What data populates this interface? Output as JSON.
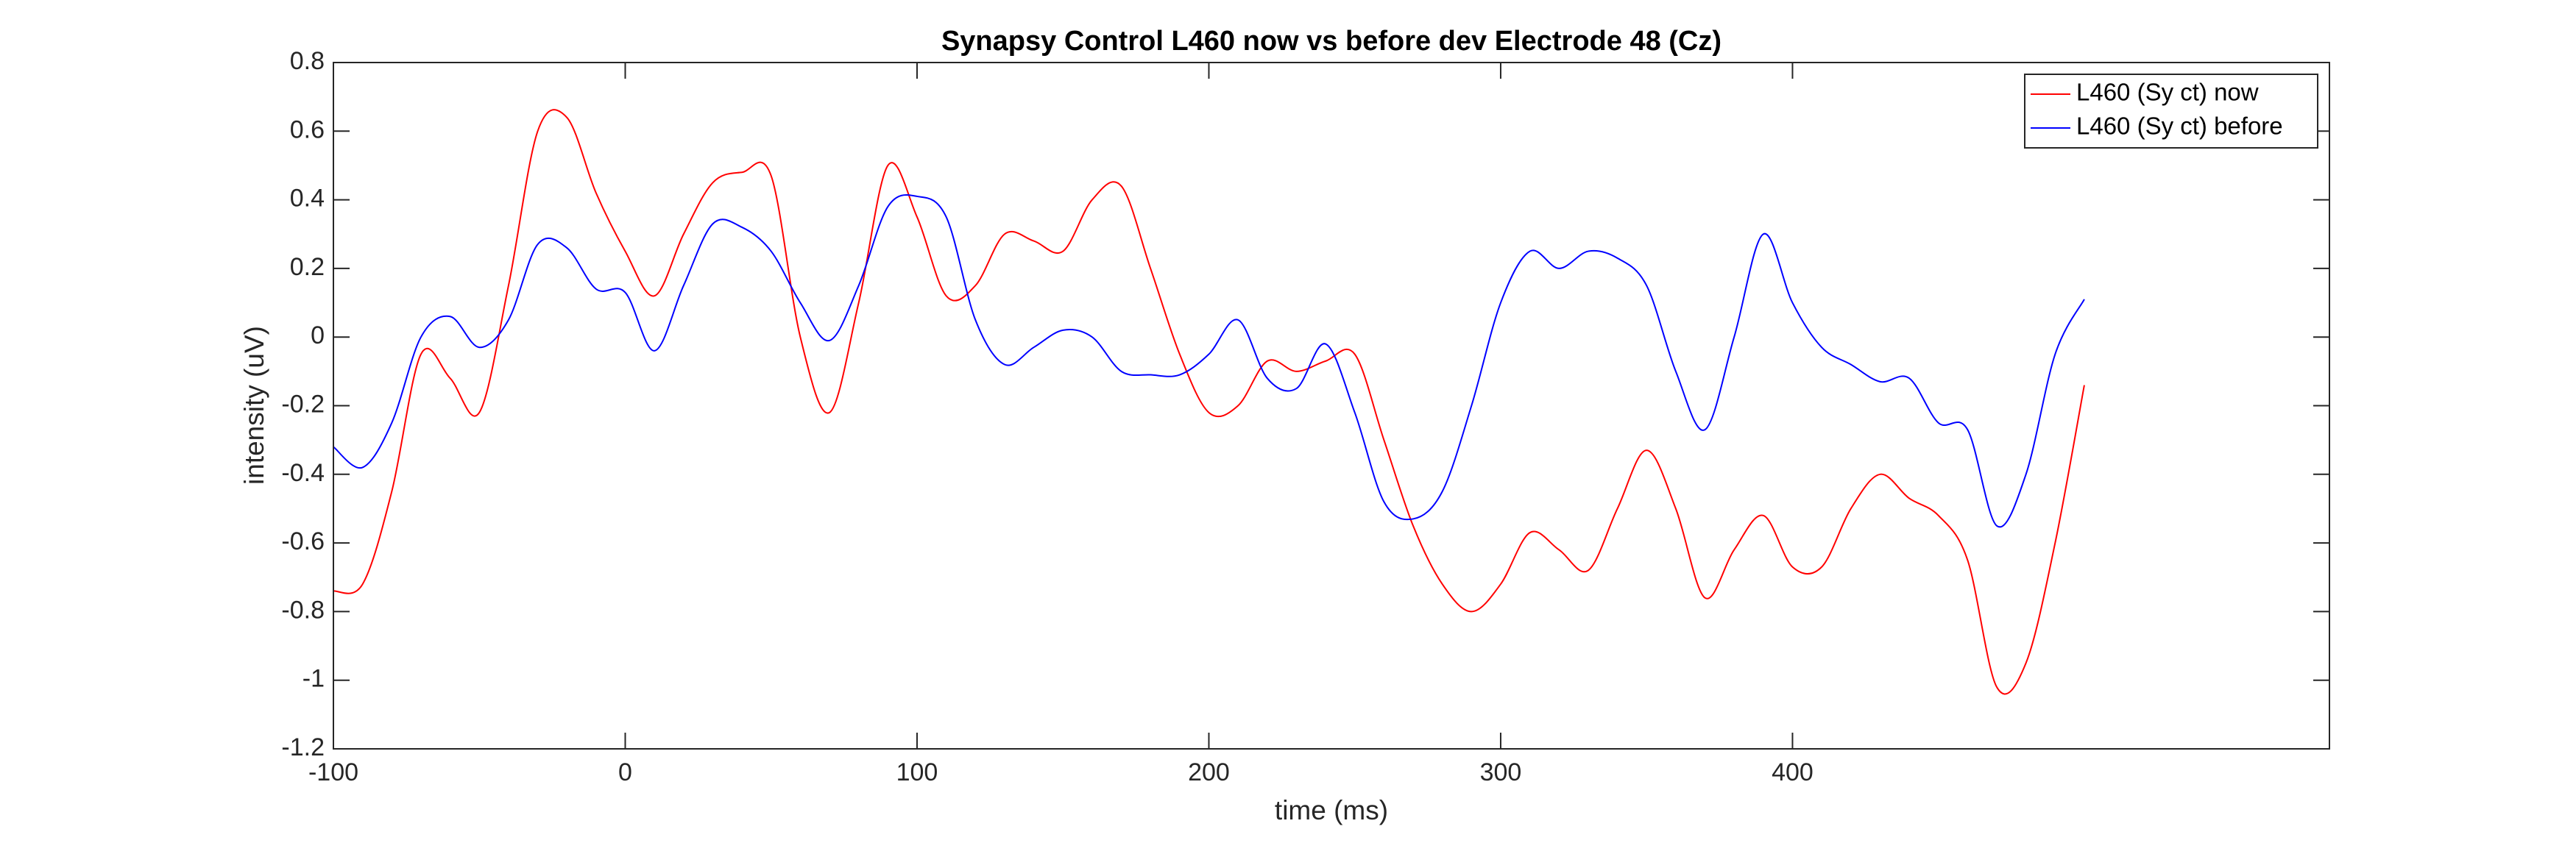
{
  "chart_data": {
    "type": "line",
    "title": "Synapsy Control L460 now vs before dev Electrode 48 (Cz)",
    "x_label": "time (ms)",
    "y_label": "intensity (uV)",
    "x": [
      -100,
      -90,
      -80,
      -70,
      -60,
      -50,
      -40,
      -30,
      -20,
      -10,
      0,
      10,
      20,
      30,
      40,
      50,
      60,
      70,
      80,
      90,
      100,
      110,
      120,
      130,
      140,
      150,
      160,
      170,
      180,
      190,
      200,
      210,
      220,
      230,
      240,
      250,
      260,
      270,
      280,
      290,
      300,
      310,
      320,
      330,
      340,
      350,
      360,
      370,
      380,
      390,
      400,
      410,
      420,
      430,
      440,
      450,
      460,
      470,
      480,
      490,
      500
    ],
    "series": [
      {
        "name": "L460 (Sy ct) now",
        "color": "#ff0000",
        "values": [
          -0.74,
          -0.72,
          -0.45,
          -0.05,
          -0.12,
          -0.22,
          0.15,
          0.6,
          0.64,
          0.42,
          0.25,
          0.12,
          0.3,
          0.45,
          0.48,
          0.47,
          0.0,
          -0.22,
          0.1,
          0.5,
          0.35,
          0.12,
          0.15,
          0.3,
          0.28,
          0.25,
          0.4,
          0.44,
          0.2,
          -0.05,
          -0.22,
          -0.2,
          -0.07,
          -0.1,
          -0.07,
          -0.05,
          -0.3,
          -0.55,
          -0.72,
          -0.8,
          -0.72,
          -0.57,
          -0.62,
          -0.68,
          -0.5,
          -0.33,
          -0.5,
          -0.76,
          -0.62,
          -0.52,
          -0.67,
          -0.67,
          -0.5,
          -0.4,
          -0.47,
          -0.52,
          -0.65,
          -1.02,
          -0.95,
          -0.6,
          -0.14
        ]
      },
      {
        "name": "L460 (Sy ct) before",
        "color": "#0000ff",
        "values": [
          -0.32,
          -0.38,
          -0.25,
          0.0,
          0.06,
          -0.03,
          0.05,
          0.27,
          0.26,
          0.14,
          0.13,
          -0.04,
          0.15,
          0.33,
          0.32,
          0.25,
          0.1,
          -0.01,
          0.15,
          0.38,
          0.41,
          0.35,
          0.05,
          -0.08,
          -0.03,
          0.02,
          0.0,
          -0.1,
          -0.11,
          -0.11,
          -0.05,
          0.05,
          -0.12,
          -0.15,
          -0.02,
          -0.22,
          -0.48,
          -0.53,
          -0.45,
          -0.2,
          0.1,
          0.25,
          0.2,
          0.25,
          0.23,
          0.15,
          -0.1,
          -0.27,
          0.0,
          0.3,
          0.1,
          -0.03,
          -0.08,
          -0.13,
          -0.12,
          -0.25,
          -0.27,
          -0.55,
          -0.4,
          -0.05,
          0.11
        ]
      }
    ],
    "xlim": [
      -100,
      584
    ],
    "xticks": [
      -100,
      0,
      100,
      200,
      300,
      400
    ],
    "ylim": [
      -1.2,
      0.8
    ],
    "yticks": [
      -1.2,
      -1,
      -0.8,
      -0.6,
      -0.4,
      -0.2,
      0,
      0.2,
      0.4,
      0.6,
      0.8
    ],
    "grid": false,
    "legend": "top-right"
  }
}
